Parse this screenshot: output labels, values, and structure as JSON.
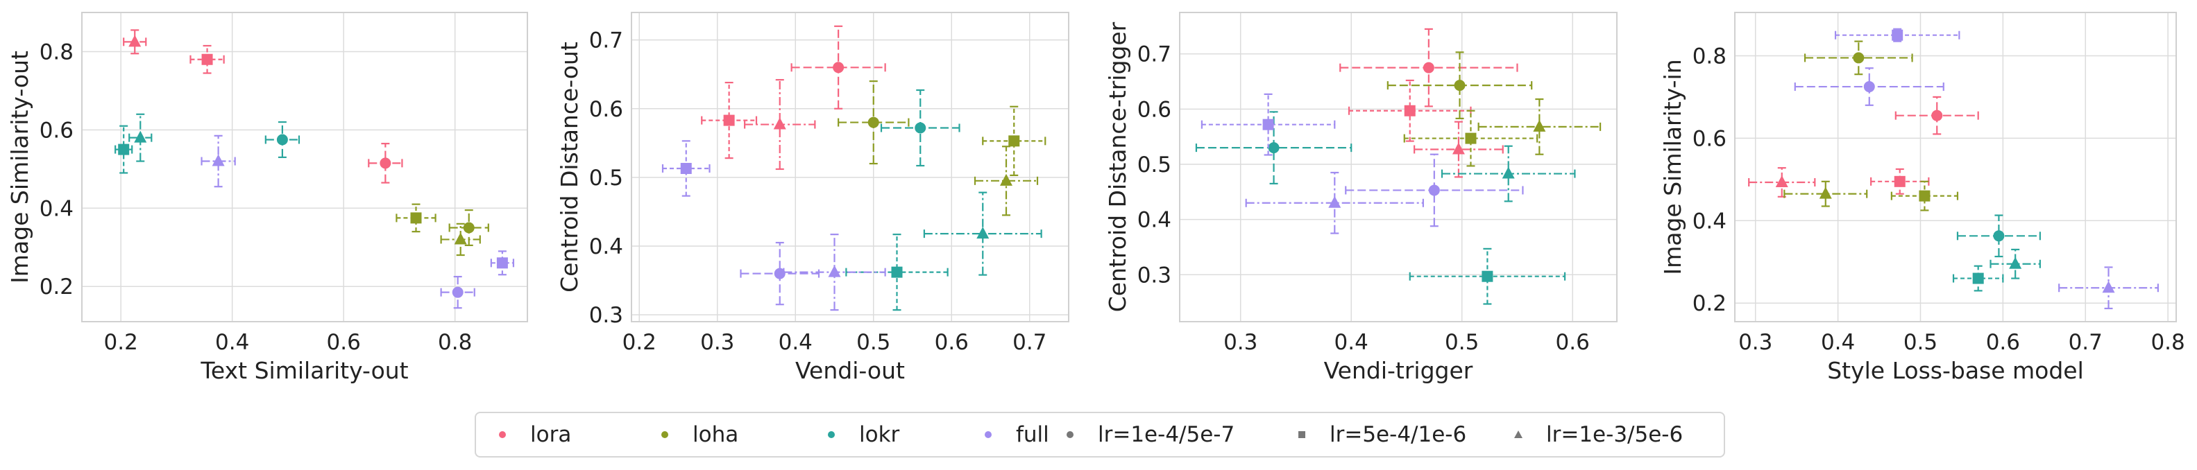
{
  "colors": {
    "lora": "#f5647f",
    "loha": "#8c9c24",
    "lokr": "#2aa59d",
    "full": "#a08cf0",
    "neutral": "#777777"
  },
  "legend": {
    "items": [
      {
        "label": "lora",
        "marker": "circle",
        "color": "#f5647f"
      },
      {
        "label": "loha",
        "marker": "circle",
        "color": "#8c9c24"
      },
      {
        "label": "lokr",
        "marker": "circle",
        "color": "#2aa59d"
      },
      {
        "label": "full",
        "marker": "circle",
        "color": "#a08cf0"
      },
      {
        "label": "lr=1e-4/5e-7",
        "marker": "circle",
        "color": "#777777"
      },
      {
        "label": "lr=5e-4/1e-6",
        "marker": "square",
        "color": "#777777"
      },
      {
        "label": "lr=1e-3/5e-6",
        "marker": "triangle",
        "color": "#777777"
      }
    ]
  },
  "chart_data": [
    {
      "type": "scatter",
      "xlabel": "Text Similarity-out",
      "ylabel": "Image Similarity-out",
      "xlim": [
        0.13,
        0.93
      ],
      "ylim": [
        0.11,
        0.9
      ],
      "xticks": [
        "0.2",
        "0.4",
        "0.6",
        "0.8"
      ],
      "xtick_values": [
        0.2,
        0.4,
        0.6,
        0.8
      ],
      "yticks": [
        "0.2",
        "0.4",
        "0.6",
        "0.8"
      ],
      "ytick_values": [
        0.2,
        0.4,
        0.6,
        0.8
      ],
      "grid": true,
      "points": [
        {
          "method": "lora",
          "lr": "lr=1e-3/5e-6",
          "marker": "triangle",
          "x": 0.225,
          "y": 0.825,
          "xerr": 0.02,
          "yerr": 0.03
        },
        {
          "method": "lora",
          "lr": "lr=5e-4/1e-6",
          "marker": "square",
          "x": 0.355,
          "y": 0.78,
          "xerr": 0.03,
          "yerr": 0.035
        },
        {
          "method": "lora",
          "lr": "lr=1e-4/5e-7",
          "marker": "circle",
          "x": 0.675,
          "y": 0.515,
          "xerr": 0.03,
          "yerr": 0.05
        },
        {
          "method": "lokr",
          "lr": "lr=5e-4/1e-6",
          "marker": "square",
          "x": 0.205,
          "y": 0.55,
          "xerr": 0.015,
          "yerr": 0.06
        },
        {
          "method": "lokr",
          "lr": "lr=1e-3/5e-6",
          "marker": "triangle",
          "x": 0.235,
          "y": 0.58,
          "xerr": 0.02,
          "yerr": 0.06
        },
        {
          "method": "lokr",
          "lr": "lr=1e-4/5e-7",
          "marker": "circle",
          "x": 0.49,
          "y": 0.575,
          "xerr": 0.03,
          "yerr": 0.045
        },
        {
          "method": "full",
          "lr": "lr=1e-3/5e-6",
          "marker": "triangle",
          "x": 0.375,
          "y": 0.52,
          "xerr": 0.03,
          "yerr": 0.065
        },
        {
          "method": "full",
          "lr": "lr=1e-4/5e-7",
          "marker": "circle",
          "x": 0.805,
          "y": 0.185,
          "xerr": 0.03,
          "yerr": 0.04
        },
        {
          "method": "full",
          "lr": "lr=5e-4/1e-6",
          "marker": "square",
          "x": 0.885,
          "y": 0.26,
          "xerr": 0.02,
          "yerr": 0.03
        },
        {
          "method": "loha",
          "lr": "lr=5e-4/1e-6",
          "marker": "square",
          "x": 0.73,
          "y": 0.375,
          "xerr": 0.035,
          "yerr": 0.035
        },
        {
          "method": "loha",
          "lr": "lr=1e-4/5e-7",
          "marker": "circle",
          "x": 0.825,
          "y": 0.35,
          "xerr": 0.035,
          "yerr": 0.045
        },
        {
          "method": "loha",
          "lr": "lr=1e-3/5e-6",
          "marker": "triangle",
          "x": 0.81,
          "y": 0.32,
          "xerr": 0.035,
          "yerr": 0.04
        }
      ]
    },
    {
      "type": "scatter",
      "xlabel": "Vendi-out",
      "ylabel": "Centroid Distance-out",
      "xlim": [
        0.19,
        0.75
      ],
      "ylim": [
        0.29,
        0.74
      ],
      "xticks": [
        "0.2",
        "0.3",
        "0.4",
        "0.5",
        "0.6",
        "0.7"
      ],
      "xtick_values": [
        0.2,
        0.3,
        0.4,
        0.5,
        0.6,
        0.7
      ],
      "yticks": [
        "0.3",
        "0.4",
        "0.5",
        "0.6",
        "0.7"
      ],
      "ytick_values": [
        0.3,
        0.4,
        0.5,
        0.6,
        0.7
      ],
      "grid": true,
      "points": [
        {
          "method": "lora",
          "lr": "lr=1e-4/5e-7",
          "marker": "circle",
          "x": 0.455,
          "y": 0.66,
          "xerr": 0.06,
          "yerr": 0.06
        },
        {
          "method": "lora",
          "lr": "lr=5e-4/1e-6",
          "marker": "square",
          "x": 0.315,
          "y": 0.583,
          "xerr": 0.035,
          "yerr": 0.055
        },
        {
          "method": "lora",
          "lr": "lr=1e-3/5e-6",
          "marker": "triangle",
          "x": 0.38,
          "y": 0.577,
          "xerr": 0.045,
          "yerr": 0.065
        },
        {
          "method": "loha",
          "lr": "lr=1e-4/5e-7",
          "marker": "circle",
          "x": 0.5,
          "y": 0.58,
          "xerr": 0.045,
          "yerr": 0.06
        },
        {
          "method": "loha",
          "lr": "lr=5e-4/1e-6",
          "marker": "square",
          "x": 0.68,
          "y": 0.553,
          "xerr": 0.04,
          "yerr": 0.05
        },
        {
          "method": "loha",
          "lr": "lr=1e-3/5e-6",
          "marker": "triangle",
          "x": 0.67,
          "y": 0.495,
          "xerr": 0.04,
          "yerr": 0.05
        },
        {
          "method": "lokr",
          "lr": "lr=1e-4/5e-7",
          "marker": "circle",
          "x": 0.56,
          "y": 0.572,
          "xerr": 0.05,
          "yerr": 0.055
        },
        {
          "method": "lokr",
          "lr": "lr=5e-4/1e-6",
          "marker": "square",
          "x": 0.53,
          "y": 0.362,
          "xerr": 0.065,
          "yerr": 0.055
        },
        {
          "method": "lokr",
          "lr": "lr=1e-3/5e-6",
          "marker": "triangle",
          "x": 0.64,
          "y": 0.418,
          "xerr": 0.075,
          "yerr": 0.06
        },
        {
          "method": "full",
          "lr": "lr=5e-4/1e-6",
          "marker": "square",
          "x": 0.26,
          "y": 0.513,
          "xerr": 0.03,
          "yerr": 0.04
        },
        {
          "method": "full",
          "lr": "lr=1e-4/5e-7",
          "marker": "circle",
          "x": 0.38,
          "y": 0.36,
          "xerr": 0.05,
          "yerr": 0.045
        },
        {
          "method": "full",
          "lr": "lr=1e-3/5e-6",
          "marker": "triangle",
          "x": 0.45,
          "y": 0.362,
          "xerr": 0.065,
          "yerr": 0.055
        }
      ]
    },
    {
      "type": "scatter",
      "xlabel": "Vendi-trigger",
      "ylabel": "Centroid Distance-trigger",
      "xlim": [
        0.245,
        0.64
      ],
      "ylim": [
        0.215,
        0.775
      ],
      "xticks": [
        "0.3",
        "0.4",
        "0.5",
        "0.6"
      ],
      "xtick_values": [
        0.3,
        0.4,
        0.5,
        0.6
      ],
      "yticks": [
        "0.3",
        "0.4",
        "0.5",
        "0.6",
        "0.7"
      ],
      "ytick_values": [
        0.3,
        0.4,
        0.5,
        0.6,
        0.7
      ],
      "grid": true,
      "points": [
        {
          "method": "lora",
          "lr": "lr=1e-4/5e-7",
          "marker": "circle",
          "x": 0.47,
          "y": 0.675,
          "xerr": 0.08,
          "yerr": 0.07
        },
        {
          "method": "lora",
          "lr": "lr=5e-4/1e-6",
          "marker": "square",
          "x": 0.453,
          "y": 0.597,
          "xerr": 0.055,
          "yerr": 0.055
        },
        {
          "method": "lora",
          "lr": "lr=1e-3/5e-6",
          "marker": "triangle",
          "x": 0.497,
          "y": 0.527,
          "xerr": 0.04,
          "yerr": 0.05
        },
        {
          "method": "loha",
          "lr": "lr=1e-4/5e-7",
          "marker": "circle",
          "x": 0.498,
          "y": 0.643,
          "xerr": 0.065,
          "yerr": 0.06
        },
        {
          "method": "loha",
          "lr": "lr=5e-4/1e-6",
          "marker": "square",
          "x": 0.508,
          "y": 0.547,
          "xerr": 0.06,
          "yerr": 0.05
        },
        {
          "method": "loha",
          "lr": "lr=1e-3/5e-6",
          "marker": "triangle",
          "x": 0.57,
          "y": 0.568,
          "xerr": 0.055,
          "yerr": 0.05
        },
        {
          "method": "lokr",
          "lr": "lr=1e-4/5e-7",
          "marker": "circle",
          "x": 0.33,
          "y": 0.53,
          "xerr": 0.07,
          "yerr": 0.065
        },
        {
          "method": "lokr",
          "lr": "lr=5e-4/1e-6",
          "marker": "square",
          "x": 0.523,
          "y": 0.297,
          "xerr": 0.07,
          "yerr": 0.05
        },
        {
          "method": "lokr",
          "lr": "lr=1e-3/5e-6",
          "marker": "triangle",
          "x": 0.542,
          "y": 0.483,
          "xerr": 0.06,
          "yerr": 0.05
        },
        {
          "method": "full",
          "lr": "lr=5e-4/1e-6",
          "marker": "square",
          "x": 0.325,
          "y": 0.572,
          "xerr": 0.06,
          "yerr": 0.055
        },
        {
          "method": "full",
          "lr": "lr=1e-4/5e-7",
          "marker": "circle",
          "x": 0.475,
          "y": 0.453,
          "xerr": 0.08,
          "yerr": 0.065
        },
        {
          "method": "full",
          "lr": "lr=1e-3/5e-6",
          "marker": "triangle",
          "x": 0.385,
          "y": 0.43,
          "xerr": 0.08,
          "yerr": 0.055
        }
      ]
    },
    {
      "type": "scatter",
      "xlabel": "Style Loss-base model",
      "ylabel": "Image Similarity-in",
      "xlim": [
        0.275,
        0.81
      ],
      "ylim": [
        0.155,
        0.905
      ],
      "xticks": [
        "0.3",
        "0.4",
        "0.5",
        "0.6",
        "0.7",
        "0.8"
      ],
      "xtick_values": [
        0.3,
        0.4,
        0.5,
        0.6,
        0.7,
        0.8
      ],
      "yticks": [
        "0.2",
        "0.4",
        "0.6",
        "0.8"
      ],
      "ytick_values": [
        0.2,
        0.4,
        0.6,
        0.8
      ],
      "grid": true,
      "points": [
        {
          "method": "lora",
          "lr": "lr=1e-4/5e-7",
          "marker": "circle",
          "x": 0.52,
          "y": 0.655,
          "xerr": 0.05,
          "yerr": 0.045
        },
        {
          "method": "lora",
          "lr": "lr=5e-4/1e-6",
          "marker": "square",
          "x": 0.475,
          "y": 0.495,
          "xerr": 0.035,
          "yerr": 0.03
        },
        {
          "method": "lora",
          "lr": "lr=1e-3/5e-6",
          "marker": "triangle",
          "x": 0.332,
          "y": 0.493,
          "xerr": 0.04,
          "yerr": 0.035
        },
        {
          "method": "loha",
          "lr": "lr=1e-4/5e-7",
          "marker": "circle",
          "x": 0.425,
          "y": 0.795,
          "xerr": 0.065,
          "yerr": 0.04
        },
        {
          "method": "loha",
          "lr": "lr=5e-4/1e-6",
          "marker": "square",
          "x": 0.505,
          "y": 0.46,
          "xerr": 0.04,
          "yerr": 0.035
        },
        {
          "method": "loha",
          "lr": "lr=1e-3/5e-6",
          "marker": "triangle",
          "x": 0.385,
          "y": 0.465,
          "xerr": 0.05,
          "yerr": 0.03
        },
        {
          "method": "lokr",
          "lr": "lr=1e-4/5e-7",
          "marker": "circle",
          "x": 0.595,
          "y": 0.363,
          "xerr": 0.05,
          "yerr": 0.05
        },
        {
          "method": "lokr",
          "lr": "lr=5e-4/1e-6",
          "marker": "square",
          "x": 0.57,
          "y": 0.26,
          "xerr": 0.03,
          "yerr": 0.03
        },
        {
          "method": "lokr",
          "lr": "lr=1e-3/5e-6",
          "marker": "triangle",
          "x": 0.615,
          "y": 0.295,
          "xerr": 0.03,
          "yerr": 0.035
        },
        {
          "method": "full",
          "lr": "lr=5e-4/1e-6",
          "marker": "square",
          "x": 0.472,
          "y": 0.85,
          "xerr": 0.075,
          "yerr": 0.015
        },
        {
          "method": "full",
          "lr": "lr=1e-4/5e-7",
          "marker": "circle",
          "x": 0.438,
          "y": 0.725,
          "xerr": 0.09,
          "yerr": 0.045
        },
        {
          "method": "full",
          "lr": "lr=1e-3/5e-6",
          "marker": "triangle",
          "x": 0.728,
          "y": 0.237,
          "xerr": 0.06,
          "yerr": 0.05
        }
      ]
    }
  ]
}
